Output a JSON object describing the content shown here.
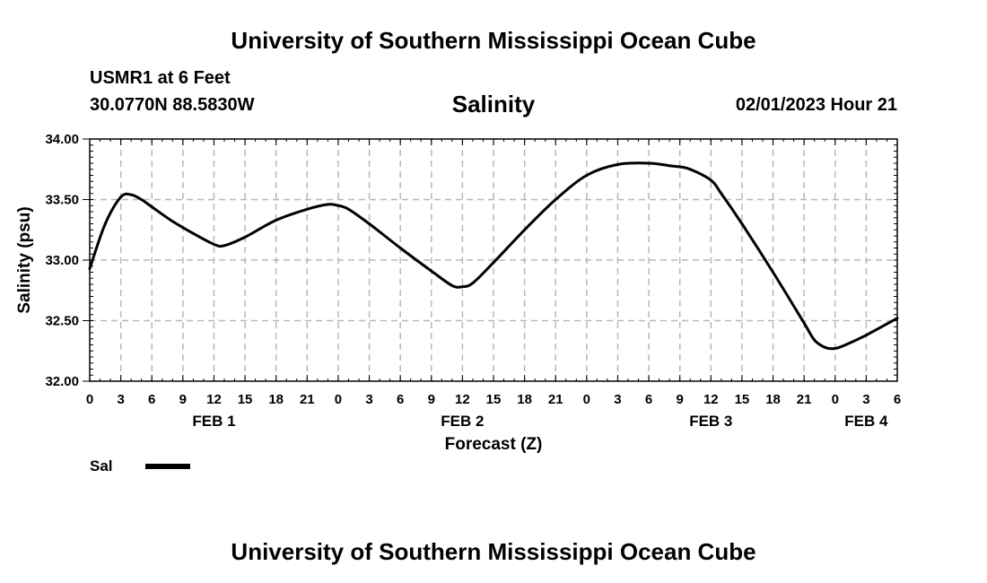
{
  "header": {
    "title_top": "University of Southern Mississippi Ocean Cube",
    "station": "USMR1 at 6 Feet",
    "coords": "30.0770N  88.5830W",
    "timestamp": "02/01/2023 Hour 21"
  },
  "footer": {
    "title_bottom": "University of Southern Mississippi Ocean Cube"
  },
  "chart_data": {
    "type": "line",
    "title": "Salinity",
    "xlabel": "Forecast (Z)",
    "ylabel": "Salinity (psu)",
    "ylim": [
      32.0,
      34.0
    ],
    "yticks": [
      "32.00",
      "32.50",
      "33.00",
      "33.50",
      "34.00"
    ],
    "xlim_hours": [
      0,
      78
    ],
    "xticks": [
      "0",
      "3",
      "6",
      "9",
      "12",
      "15",
      "18",
      "21",
      "0",
      "3",
      "6",
      "9",
      "12",
      "15",
      "18",
      "21",
      "0",
      "3",
      "6",
      "9",
      "12",
      "15",
      "18",
      "21",
      "0",
      "3",
      "6"
    ],
    "day_labels": [
      {
        "label": "FEB 1",
        "hour": 12
      },
      {
        "label": "FEB 2",
        "hour": 36
      },
      {
        "label": "FEB 3",
        "hour": 60
      },
      {
        "label": "FEB 4",
        "hour": 75
      }
    ],
    "grid": true,
    "legend": "bottom-left",
    "series": [
      {
        "name": "Sal",
        "color": "#000000",
        "x": [
          0,
          1.5,
          3,
          4,
          5,
          6,
          8,
          10,
          12,
          13,
          15,
          18,
          21,
          23,
          24,
          25,
          27,
          30,
          33,
          35,
          36,
          37,
          39,
          42,
          45,
          48,
          51,
          54,
          56,
          57,
          58,
          60,
          61,
          63,
          66,
          69,
          70,
          71,
          72,
          73,
          75,
          78
        ],
        "y": [
          32.93,
          33.3,
          33.52,
          33.54,
          33.5,
          33.44,
          33.32,
          33.22,
          33.13,
          33.12,
          33.19,
          33.33,
          33.42,
          33.46,
          33.45,
          33.42,
          33.3,
          33.1,
          32.91,
          32.79,
          32.78,
          32.81,
          32.98,
          33.25,
          33.5,
          33.7,
          33.79,
          33.8,
          33.78,
          33.77,
          33.75,
          33.66,
          33.55,
          33.3,
          32.9,
          32.48,
          32.34,
          32.28,
          32.27,
          32.3,
          32.38,
          32.52
        ]
      }
    ]
  }
}
